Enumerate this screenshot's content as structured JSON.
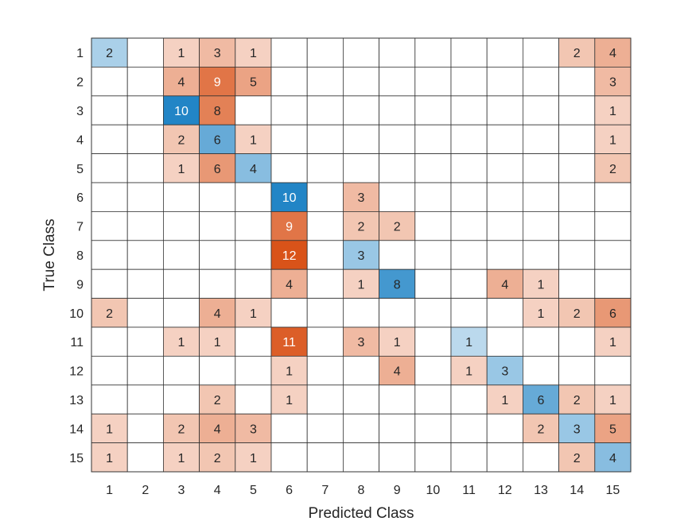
{
  "chart_data": {
    "type": "heatmap",
    "title": "",
    "xlabel": "Predicted Class",
    "ylabel": "True Class",
    "x_categories": [
      "1",
      "2",
      "3",
      "4",
      "5",
      "6",
      "7",
      "8",
      "9",
      "10",
      "11",
      "12",
      "13",
      "14",
      "15"
    ],
    "y_categories": [
      "1",
      "2",
      "3",
      "4",
      "5",
      "6",
      "7",
      "8",
      "9",
      "10",
      "11",
      "12",
      "13",
      "14",
      "15"
    ],
    "matrix": [
      [
        2,
        0,
        1,
        3,
        1,
        0,
        0,
        0,
        0,
        0,
        0,
        0,
        0,
        2,
        4
      ],
      [
        0,
        0,
        4,
        9,
        5,
        0,
        0,
        0,
        0,
        0,
        0,
        0,
        0,
        0,
        3
      ],
      [
        0,
        0,
        10,
        8,
        0,
        0,
        0,
        0,
        0,
        0,
        0,
        0,
        0,
        0,
        1
      ],
      [
        0,
        0,
        2,
        6,
        1,
        0,
        0,
        0,
        0,
        0,
        0,
        0,
        0,
        0,
        1
      ],
      [
        0,
        0,
        1,
        6,
        4,
        0,
        0,
        0,
        0,
        0,
        0,
        0,
        0,
        0,
        2
      ],
      [
        0,
        0,
        0,
        0,
        0,
        10,
        0,
        3,
        0,
        0,
        0,
        0,
        0,
        0,
        0
      ],
      [
        0,
        0,
        0,
        0,
        0,
        9,
        0,
        2,
        2,
        0,
        0,
        0,
        0,
        0,
        0
      ],
      [
        0,
        0,
        0,
        0,
        0,
        12,
        0,
        3,
        0,
        0,
        0,
        0,
        0,
        0,
        0
      ],
      [
        0,
        0,
        0,
        0,
        0,
        4,
        0,
        1,
        8,
        0,
        0,
        4,
        1,
        0,
        0
      ],
      [
        2,
        0,
        0,
        4,
        1,
        0,
        0,
        0,
        0,
        0,
        0,
        0,
        1,
        2,
        6
      ],
      [
        0,
        0,
        1,
        1,
        0,
        11,
        0,
        3,
        1,
        0,
        1,
        0,
        0,
        0,
        1
      ],
      [
        0,
        0,
        0,
        0,
        0,
        1,
        0,
        0,
        4,
        0,
        1,
        3,
        0,
        0,
        0
      ],
      [
        0,
        0,
        0,
        2,
        0,
        1,
        0,
        0,
        0,
        0,
        0,
        1,
        6,
        2,
        1
      ],
      [
        1,
        0,
        2,
        4,
        3,
        0,
        0,
        0,
        0,
        0,
        0,
        0,
        2,
        3,
        5
      ],
      [
        1,
        0,
        1,
        2,
        1,
        0,
        0,
        0,
        0,
        0,
        0,
        0,
        0,
        2,
        4
      ]
    ],
    "colors": {
      "correct_dark": "#0072BD",
      "incorrect_dark": "#D95319",
      "grid": "#333333",
      "text": "#262626"
    }
  }
}
